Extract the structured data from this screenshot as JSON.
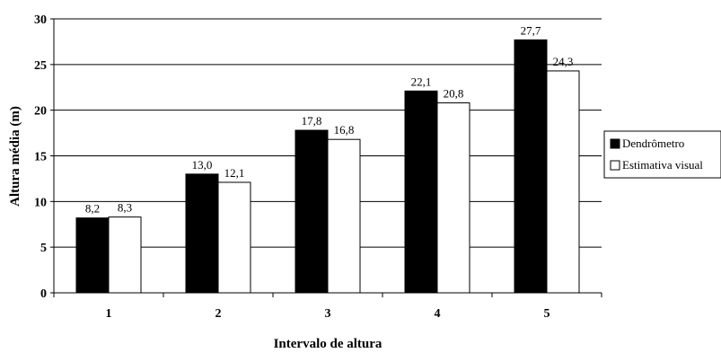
{
  "chart_data": {
    "type": "bar",
    "title": "",
    "xlabel": "Intervalo de altura",
    "ylabel": "Altura média (m)",
    "categories": [
      "1",
      "2",
      "3",
      "4",
      "5"
    ],
    "series": [
      {
        "name": "Dendrômetro",
        "values": [
          8.2,
          13.0,
          17.8,
          22.1,
          27.7
        ],
        "labels": [
          "8,2",
          "13,0",
          "17,8",
          "22,1",
          "27,7"
        ],
        "color": "#000000"
      },
      {
        "name": "Estimativa visual",
        "values": [
          8.3,
          12.1,
          16.8,
          20.8,
          24.3
        ],
        "labels": [
          "8,3",
          "12,1",
          "16,8",
          "20,8",
          "24,3"
        ],
        "color": "#ffffff"
      }
    ],
    "ylim": [
      0,
      30
    ],
    "yticks": [
      0,
      5,
      10,
      15,
      20,
      25,
      30
    ],
    "grid": true,
    "legend_position": "right"
  }
}
